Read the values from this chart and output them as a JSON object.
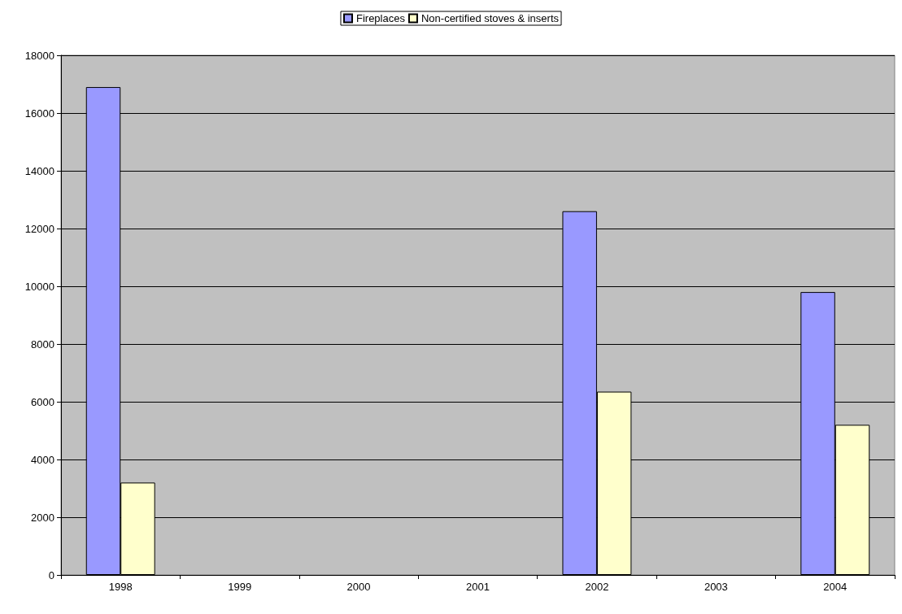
{
  "chart_data": {
    "type": "bar",
    "categories": [
      "1998",
      "1999",
      "2000",
      "2001",
      "2002",
      "2003",
      "2004"
    ],
    "series": [
      {
        "name": "Fireplaces",
        "color": "#9999ff",
        "values": [
          16900,
          null,
          null,
          null,
          12600,
          null,
          9800
        ]
      },
      {
        "name": "Non-certified stoves & inserts",
        "color": "#ffffcc",
        "values": [
          3200,
          null,
          null,
          null,
          6350,
          null,
          5200
        ]
      }
    ],
    "ylim": [
      0,
      18000
    ],
    "yticks": [
      0,
      2000,
      4000,
      6000,
      8000,
      10000,
      12000,
      14000,
      16000,
      18000
    ],
    "grid": "y",
    "legend": "top"
  }
}
